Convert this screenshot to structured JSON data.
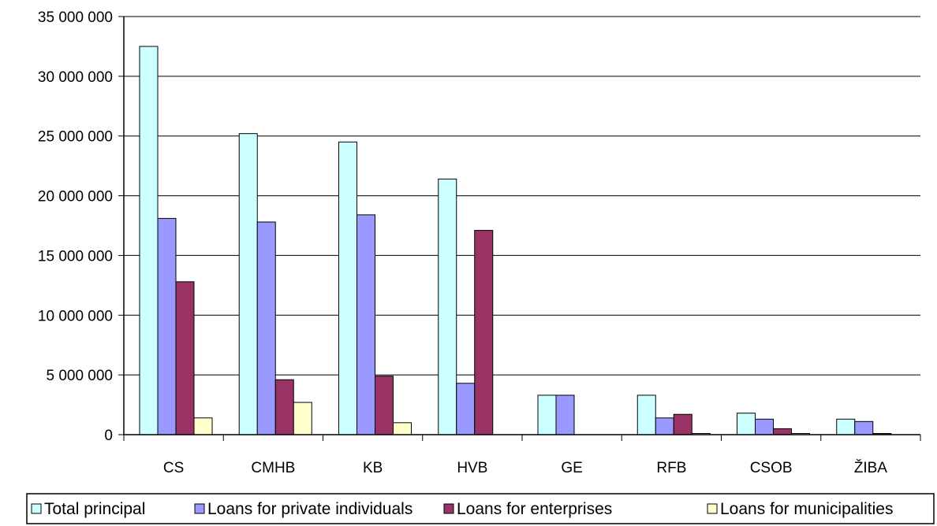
{
  "chart_data": {
    "type": "bar",
    "categories": [
      "CS",
      "CMHB",
      "KB",
      "HVB",
      "GE",
      "RFB",
      "CSOB",
      "ŽIBA"
    ],
    "series": [
      {
        "name": "Total principal",
        "color": "#ccffff",
        "values": [
          32500000,
          25200000,
          24500000,
          21400000,
          3300000,
          3300000,
          1800000,
          1300000
        ]
      },
      {
        "name": "Loans for private individuals",
        "color": "#9999ff",
        "values": [
          18100000,
          17800000,
          18400000,
          4300000,
          3300000,
          1400000,
          1300000,
          1100000
        ]
      },
      {
        "name": "Loans for enterprises",
        "color": "#993366",
        "values": [
          12800000,
          4600000,
          4900000,
          17100000,
          0,
          1700000,
          500000,
          100000
        ]
      },
      {
        "name": "Loans for municipalities",
        "color": "#ffffcc",
        "values": [
          1400000,
          2700000,
          1000000,
          0,
          0,
          100000,
          100000,
          0
        ]
      }
    ],
    "yticks": [
      "0",
      "5 000 000",
      "10 000 000",
      "15 000 000",
      "20 000 000",
      "25 000 000",
      "30 000 000",
      "35 000 000"
    ],
    "ylim": [
      0,
      35000000
    ],
    "grid": true,
    "legend_position": "bottom"
  }
}
